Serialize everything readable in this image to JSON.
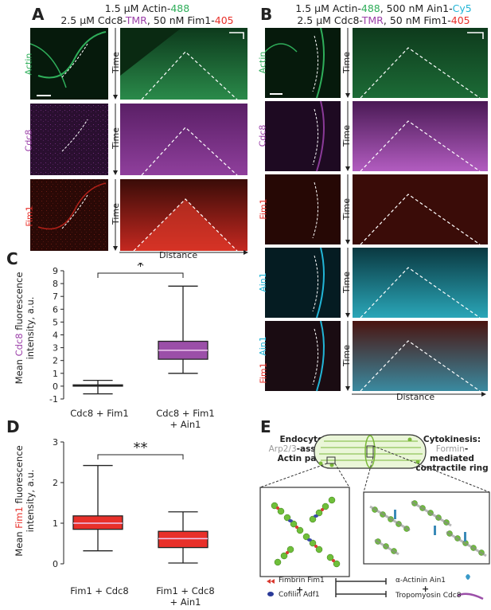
{
  "panels": {
    "A": {
      "letter": "A",
      "cond_line1_pre": "1.5 µM Actin-",
      "cond_line1_num": "488",
      "cond_line2_pre": "2.5 µM Cdc8-",
      "cond_line2_tmr": "TMR",
      "cond_line2_mid": ", 50 nM Fim1-",
      "cond_line2_num": "405",
      "channels": [
        "Actin",
        "Cdc8",
        "Fim1"
      ]
    },
    "B": {
      "letter": "B",
      "cond_line1_pre": "1.5 µM Actin-",
      "cond_line1_num": "488",
      "cond_line1_mid": ", 500 nM Ain1-",
      "cond_line1_cy": "Cy5",
      "cond_line2_pre": "2.5 µM Cdc8-",
      "cond_line2_tmr": "TMR",
      "cond_line2_mid": ", 50 nM Fim1-",
      "cond_line2_num": "405",
      "channels": [
        "Actin",
        "Cdc8",
        "Fim1",
        "Ain1",
        "Fim1",
        "Ain1"
      ]
    },
    "C": {
      "letter": "C"
    },
    "D": {
      "letter": "D"
    },
    "E": {
      "letter": "E",
      "endo_title": "Endocytosis:",
      "endo_l2_a": "Arp2/3",
      "endo_l2_b": "-assembled",
      "endo_l3": "Actin patches",
      "cyto_title": "Cytokinesis:",
      "cyto_l2_a": "Formin",
      "cyto_l2_b": "-mediated",
      "cyto_l3": "contractile ring",
      "legend": {
        "fim": "Fimbrin Fim1",
        "cof": "Cofilin Adf1",
        "ain": "α-Actinin Ain1",
        "tpm": "Tropomyosin Cdc8",
        "plus": "+"
      }
    }
  },
  "axis_labels": {
    "time": "Time",
    "distance": "Distance"
  },
  "colors": {
    "actin": "#2fae5a",
    "cdc8": "#9b3fa8",
    "fim1": "#e8302a",
    "ain1": "#22b5d6"
  },
  "chart_data": [
    {
      "type": "box",
      "title": "",
      "ylabel_pre": "Mean ",
      "ylabel_key": "Cdc8",
      "ylabel_post": " fluorescence",
      "ylabel_l2": "intensity, a.u.",
      "ylim": [
        -1,
        9
      ],
      "yticks": [
        -1,
        0,
        1,
        2,
        3,
        4,
        5,
        6,
        7,
        8,
        9
      ],
      "categories": [
        "Cdc8 + Fim1",
        "Cdc8 + Fim1\n+ Ain1"
      ],
      "cat_l1": [
        "Cdc8 + Fim1",
        "Cdc8 + Fim1"
      ],
      "cat_l2": [
        "",
        "+ Ain1"
      ],
      "boxes": [
        {
          "min": -0.6,
          "q1": 0.0,
          "median": 0.05,
          "q3": 0.1,
          "max": 0.45
        },
        {
          "min": 1.0,
          "q1": 2.1,
          "median": 2.8,
          "q3": 3.5,
          "max": 7.8
        }
      ],
      "fill": [
        "#ffffff",
        "#9b4fa8"
      ],
      "significance": "*"
    },
    {
      "type": "box",
      "title": "",
      "ylabel_pre": "Mean ",
      "ylabel_key": "Fim1",
      "ylabel_post": " fluorescence",
      "ylabel_l2": "intensity, a.u.",
      "ylim": [
        0,
        3
      ],
      "yticks": [
        0,
        1,
        2,
        3
      ],
      "categories": [
        "Fim1 + Cdc8",
        "Fim1 + Cdc8\n+ Ain1"
      ],
      "cat_l1": [
        "Fim1 + Cdc8",
        "Fim1 + Cdc8"
      ],
      "cat_l2": [
        "",
        "+ Ain1"
      ],
      "boxes": [
        {
          "min": 0.32,
          "q1": 0.85,
          "median": 1.0,
          "q3": 1.18,
          "max": 2.42
        },
        {
          "min": 0.02,
          "q1": 0.4,
          "median": 0.62,
          "q3": 0.8,
          "max": 1.28
        }
      ],
      "fill": [
        "#e8302a",
        "#e8302a"
      ],
      "significance": "**"
    }
  ]
}
